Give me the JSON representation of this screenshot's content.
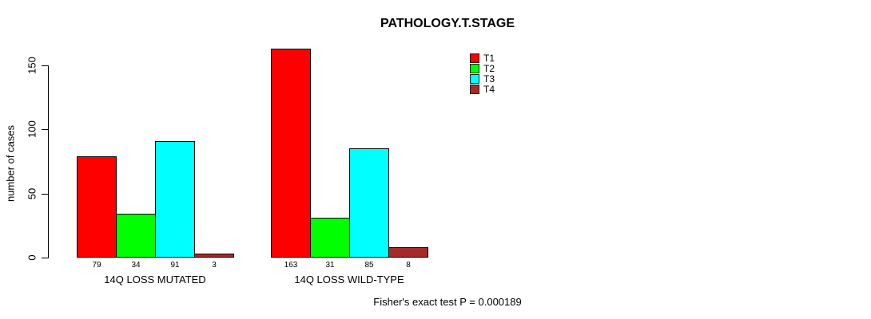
{
  "chart_data": {
    "type": "bar",
    "title": "PATHOLOGY.T.STAGE",
    "ylabel": "number of cases",
    "yticks": [
      0,
      50,
      100,
      150
    ],
    "ylim": [
      0,
      170
    ],
    "grid": false,
    "legend_position": "top-right",
    "groups": [
      "14Q LOSS MUTATED",
      "14Q LOSS WILD-TYPE"
    ],
    "series": [
      {
        "name": "T1",
        "color": "#ff0000",
        "values": [
          79,
          163
        ]
      },
      {
        "name": "T2",
        "color": "#00ff00",
        "values": [
          34,
          31
        ]
      },
      {
        "name": "T3",
        "color": "#00ffff",
        "values": [
          91,
          85
        ]
      },
      {
        "name": "T4",
        "color": "#a52a2a",
        "values": [
          3,
          8
        ]
      }
    ],
    "annotation": "Fisher's exact test P = 0.000189"
  },
  "colors": {
    "background": "#ffffff",
    "axis": "#000000",
    "text": "#000000"
  }
}
